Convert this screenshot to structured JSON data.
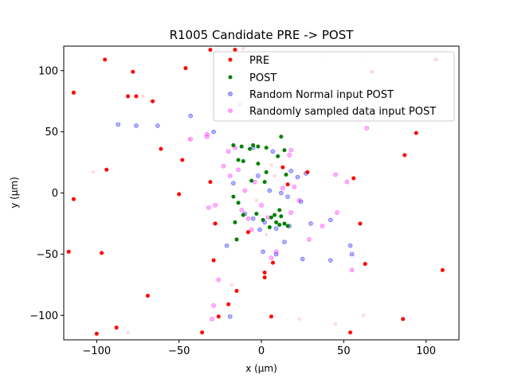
{
  "chart_data": {
    "type": "scatter",
    "title": "R1005 Candidate PRE -> POST",
    "xlabel": "x (μm)",
    "ylabel": "y (μm)",
    "xlim": [
      -120,
      120
    ],
    "ylim": [
      -120,
      120
    ],
    "xticks": [
      -100,
      -50,
      0,
      50,
      100
    ],
    "yticks": [
      -100,
      -50,
      0,
      50,
      100
    ],
    "grid": false,
    "legend_position": "upper-right",
    "series": [
      {
        "name": "PRE",
        "color": "#ff0000",
        "points": [
          [
            -31,
            117
          ],
          [
            -46,
            102
          ],
          [
            -78,
            99
          ],
          [
            -81,
            79
          ],
          [
            -66,
            75
          ],
          [
            -114,
            82
          ],
          [
            -61,
            36
          ],
          [
            -94,
            19
          ],
          [
            -114,
            -5
          ],
          [
            -97,
            -49
          ],
          [
            -117,
            -48
          ],
          [
            -69,
            -84
          ],
          [
            -88,
            -110
          ],
          [
            -36,
            -114
          ],
          [
            -29,
            -55
          ],
          [
            -31,
            9
          ],
          [
            -8,
            -32
          ],
          [
            16,
            7
          ],
          [
            13,
            21
          ],
          [
            28,
            17
          ],
          [
            60,
            -25
          ],
          [
            87,
            31
          ],
          [
            110,
            -63
          ],
          [
            54,
            -114
          ],
          [
            6,
            -101
          ],
          [
            -95,
            109
          ],
          [
            -76,
            79
          ],
          [
            -48,
            27
          ],
          [
            -50,
            -1
          ],
          [
            2,
            -65
          ],
          [
            2,
            -69
          ],
          [
            7,
            -57
          ],
          [
            -20,
            -91
          ],
          [
            -26,
            -101
          ],
          [
            94,
            49
          ],
          [
            106,
            109
          ],
          [
            67,
            99
          ],
          [
            86,
            -103
          ],
          [
            -100,
            -115
          ],
          [
            -28,
            -25
          ],
          [
            -15,
            -80
          ],
          [
            -16,
            117
          ],
          [
            63,
            -58
          ],
          [
            56,
            12
          ]
        ]
      },
      {
        "name": "POST",
        "color": "#008000",
        "points": [
          [
            -12,
            38
          ],
          [
            -7,
            36
          ],
          [
            -2,
            38
          ],
          [
            3,
            37
          ],
          [
            10,
            30
          ],
          [
            14,
            35
          ],
          [
            -17,
            39
          ],
          [
            -14,
            27
          ],
          [
            -11,
            26
          ],
          [
            -2,
            24
          ],
          [
            3,
            17
          ],
          [
            12,
            46
          ],
          [
            15,
            15
          ],
          [
            -6,
            10
          ],
          [
            2,
            9
          ],
          [
            -17,
            -3
          ],
          [
            -14,
            -8
          ],
          [
            -3,
            -17
          ],
          [
            1,
            -22
          ],
          [
            6,
            -20
          ],
          [
            8,
            -18
          ],
          [
            9,
            -24
          ],
          [
            11,
            -26
          ],
          [
            12,
            -19
          ],
          [
            14,
            -25
          ],
          [
            -16,
            -24
          ],
          [
            -11,
            -18
          ],
          [
            -15,
            -38
          ],
          [
            -5,
            39
          ],
          [
            11,
            -14
          ],
          [
            16,
            -27
          ],
          [
            5,
            -28
          ]
        ]
      },
      {
        "name": "Random Normal input POST",
        "color": "#0000ff",
        "points": [
          [
            -87,
            56
          ],
          [
            -76,
            55
          ],
          [
            -63,
            55
          ],
          [
            -43,
            63
          ],
          [
            -13,
            72
          ],
          [
            -29,
            50
          ],
          [
            -5,
            37
          ],
          [
            7,
            34
          ],
          [
            18,
            18
          ],
          [
            22,
            13
          ],
          [
            27,
            16
          ],
          [
            -17,
            8
          ],
          [
            -2,
            14
          ],
          [
            5,
            2
          ],
          [
            12,
            0
          ],
          [
            -10,
            -17
          ],
          [
            -5,
            -21
          ],
          [
            2,
            -24
          ],
          [
            9,
            -29
          ],
          [
            17,
            -27
          ],
          [
            24,
            -7
          ],
          [
            30,
            -25
          ],
          [
            42,
            -22
          ],
          [
            54,
            -43
          ],
          [
            55,
            -50
          ],
          [
            42,
            -55
          ],
          [
            25,
            -54
          ],
          [
            14,
            -40
          ],
          [
            1,
            -48
          ],
          [
            9,
            -50
          ],
          [
            -21,
            -43
          ],
          [
            -19,
            -101
          ],
          [
            16,
            -3
          ],
          [
            -1,
            -30
          ]
        ]
      },
      {
        "name": "Randomly sampled data input POST",
        "color": "#ff00ff",
        "points": [
          [
            -43,
            44
          ],
          [
            -33,
            48
          ],
          [
            -33,
            46
          ],
          [
            -20,
            34
          ],
          [
            -16,
            37
          ],
          [
            -23,
            22
          ],
          [
            -19,
            14
          ],
          [
            -14,
            19
          ],
          [
            -10,
            2
          ],
          [
            -4,
            9
          ],
          [
            0,
            -10
          ],
          [
            4,
            -20
          ],
          [
            -32,
            -12
          ],
          [
            -28,
            -10
          ],
          [
            -12,
            -14
          ],
          [
            -8,
            -21
          ],
          [
            -6,
            -30
          ],
          [
            17,
            31
          ],
          [
            18,
            35
          ],
          [
            20,
            5
          ],
          [
            23,
            -6
          ],
          [
            29,
            -38
          ],
          [
            37,
            -27
          ],
          [
            45,
            15
          ],
          [
            52,
            9
          ],
          [
            6,
            -53
          ],
          [
            9,
            -48
          ],
          [
            -26,
            -71
          ],
          [
            -29,
            -92
          ],
          [
            -30,
            -103
          ],
          [
            55,
            -63
          ],
          [
            64,
            53
          ],
          [
            46,
            -16
          ],
          [
            18,
            -16
          ],
          [
            13,
            4
          ]
        ]
      }
    ],
    "faded_points": [
      [
        -44,
        44
      ],
      [
        -14,
        27
      ],
      [
        6,
        23
      ],
      [
        8,
        14
      ],
      [
        -3,
        -6
      ],
      [
        3,
        -34
      ],
      [
        -29,
        -25
      ],
      [
        -18,
        -75
      ],
      [
        -72,
        79
      ],
      [
        -102,
        17
      ],
      [
        -17,
        60
      ],
      [
        61,
        112
      ],
      [
        62,
        -100
      ],
      [
        45,
        -107
      ],
      [
        -81,
        -114
      ],
      [
        -11,
        118
      ],
      [
        23,
        -103
      ],
      [
        38,
        112
      ]
    ]
  }
}
